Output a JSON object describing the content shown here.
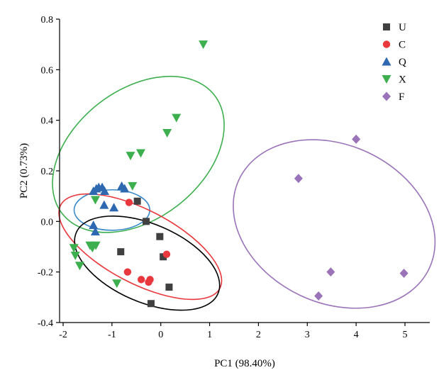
{
  "chart_data": {
    "type": "scatter",
    "title": "",
    "xlabel": "PC1 (98.40%)",
    "ylabel": "PC2 (0.73%)",
    "xlim": [
      -2,
      5.5
    ],
    "ylim": [
      -0.4,
      0.8
    ],
    "xticks": [
      -2,
      -1,
      0,
      1,
      2,
      3,
      4,
      5
    ],
    "yticks": [
      -0.4,
      -0.2,
      0.0,
      0.2,
      0.4,
      0.6,
      0.8
    ],
    "xtick_labels": [
      "-2",
      "-1",
      "0",
      "1",
      "2",
      "3",
      "4",
      "5"
    ],
    "ytick_labels": [
      "-0.4",
      "-0.2",
      "0.0",
      "0.2",
      "0.4",
      "0.6",
      "0.8"
    ],
    "grid": false,
    "legend_position": "top-right",
    "series": [
      {
        "name": "U",
        "marker": "square",
        "color": "#404040",
        "points": [
          {
            "x": -0.48,
            "y": 0.08
          },
          {
            "x": -0.3,
            "y": 0.0
          },
          {
            "x": -0.02,
            "y": -0.06
          },
          {
            "x": -0.82,
            "y": -0.12
          },
          {
            "x": 0.05,
            "y": -0.14
          },
          {
            "x": 0.17,
            "y": -0.26
          },
          {
            "x": -0.2,
            "y": -0.325
          }
        ]
      },
      {
        "name": "C",
        "marker": "circle",
        "color": "#e8383d",
        "points": [
          {
            "x": -0.65,
            "y": 0.075
          },
          {
            "x": 0.12,
            "y": -0.13
          },
          {
            "x": -0.68,
            "y": -0.2
          },
          {
            "x": -0.4,
            "y": -0.23
          },
          {
            "x": -0.22,
            "y": -0.23
          },
          {
            "x": -0.25,
            "y": -0.24
          }
        ]
      },
      {
        "name": "Q",
        "marker": "triangle-up",
        "color": "#2e68b1",
        "points": [
          {
            "x": -1.32,
            "y": 0.13
          },
          {
            "x": -1.27,
            "y": 0.135
          },
          {
            "x": -1.2,
            "y": 0.135
          },
          {
            "x": -1.15,
            "y": 0.12
          },
          {
            "x": -1.38,
            "y": 0.12
          },
          {
            "x": -0.8,
            "y": 0.14
          },
          {
            "x": -0.74,
            "y": 0.13
          },
          {
            "x": -1.16,
            "y": 0.065
          },
          {
            "x": -0.96,
            "y": 0.055
          },
          {
            "x": -1.38,
            "y": -0.015
          },
          {
            "x": -1.34,
            "y": -0.04
          }
        ]
      },
      {
        "name": "X",
        "marker": "triangle-down",
        "color": "#3daf4f",
        "points": [
          {
            "x": 0.87,
            "y": 0.7
          },
          {
            "x": 0.32,
            "y": 0.41
          },
          {
            "x": 0.13,
            "y": 0.35
          },
          {
            "x": -0.62,
            "y": 0.26
          },
          {
            "x": -0.41,
            "y": 0.27
          },
          {
            "x": -0.58,
            "y": 0.14
          },
          {
            "x": -1.34,
            "y": 0.085
          },
          {
            "x": -1.45,
            "y": -0.095
          },
          {
            "x": -1.33,
            "y": -0.095
          },
          {
            "x": -1.4,
            "y": -0.105
          },
          {
            "x": -1.78,
            "y": -0.105
          },
          {
            "x": -1.75,
            "y": -0.135
          },
          {
            "x": -1.66,
            "y": -0.175
          },
          {
            "x": -0.9,
            "y": -0.245
          }
        ]
      },
      {
        "name": "F",
        "marker": "diamond",
        "color": "#9b73b8",
        "points": [
          {
            "x": 4.0,
            "y": 0.325
          },
          {
            "x": 2.82,
            "y": 0.17
          },
          {
            "x": 3.48,
            "y": -0.2
          },
          {
            "x": 4.98,
            "y": -0.205
          },
          {
            "x": 3.23,
            "y": -0.295
          }
        ]
      }
    ],
    "ellipses": [
      {
        "series": "X",
        "color": "#3daf4f",
        "cx": -0.46,
        "cy": 0.265,
        "rx": 1.975,
        "ry": 0.255,
        "angle_deg": -37.86
      },
      {
        "series": "Q",
        "color": "#3a89c9",
        "cx": -1.0,
        "cy": 0.045,
        "rx": 0.775,
        "ry": 0.08,
        "angle_deg": 0
      },
      {
        "series": "C",
        "color": "#e8383d",
        "cx": -0.42,
        "cy": -0.1,
        "rx": 0.75,
        "ry": 0.355,
        "angle_deg": -62.38
      },
      {
        "series": "U",
        "color": "#000000",
        "cx": -0.28,
        "cy": -0.165,
        "rx": 0.8,
        "ry": 0.305,
        "angle_deg": -66.72
      },
      {
        "series": "F",
        "color": "#9b73b8",
        "cx": 3.55,
        "cy": -0.01,
        "rx": 1.62,
        "ry": 0.415,
        "angle_deg": -65.11
      }
    ]
  }
}
